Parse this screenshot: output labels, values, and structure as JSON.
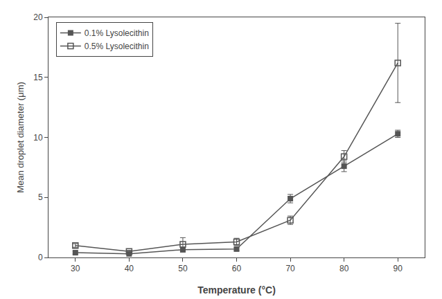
{
  "chart_data": {
    "type": "line",
    "xlabel": "Temperature (°C)",
    "ylabel": "Mean droplet diameter (μm)",
    "x": [
      30,
      40,
      50,
      60,
      70,
      80,
      90
    ],
    "series": [
      {
        "name": "0.1% Lysolecithin",
        "color": "#555555",
        "marker": "square",
        "line_style": "solid",
        "values": [
          0.4,
          0.3,
          0.65,
          0.7,
          4.9,
          7.6,
          10.3
        ],
        "errors": [
          0.12,
          0.08,
          0.2,
          0.12,
          0.35,
          0.45,
          0.3
        ]
      },
      {
        "name": "0.5% Lysolecithin",
        "color": "#555555",
        "marker": "square-open",
        "line_style": "solid",
        "values": [
          1.0,
          0.5,
          1.1,
          1.3,
          3.1,
          8.4,
          16.2
        ],
        "errors": [
          0.15,
          0.1,
          0.55,
          0.3,
          0.35,
          0.5,
          3.3
        ]
      }
    ],
    "xlim": [
      25,
      95
    ],
    "ylim": [
      0,
      20
    ],
    "xticks": [
      30,
      40,
      50,
      60,
      70,
      80,
      90
    ],
    "yticks": [
      0,
      5,
      10,
      15,
      20
    ],
    "grid": false,
    "legend": "upper left"
  }
}
